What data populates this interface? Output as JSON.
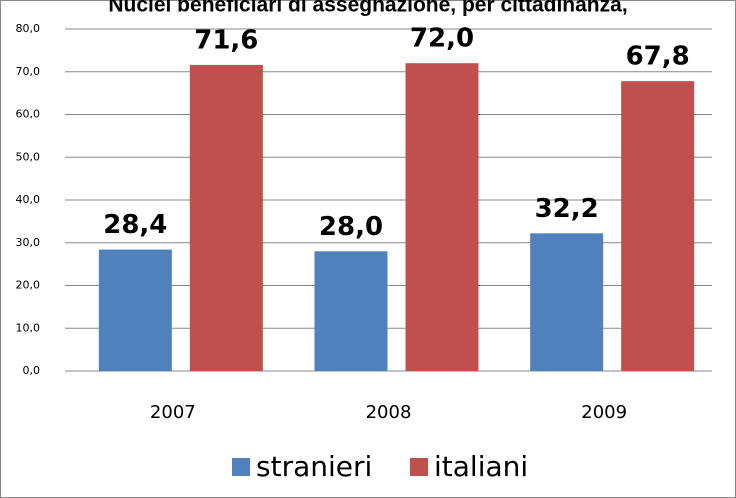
{
  "chart_data": {
    "type": "bar",
    "title": "Nuclei beneficiari di assegnazione, per cittadinanza,",
    "categories": [
      "2007",
      "2008",
      "2009"
    ],
    "series": [
      {
        "name": "stranieri",
        "color": "#4f81bd",
        "values": [
          28.4,
          28.0,
          32.2
        ],
        "value_labels": [
          "28,4",
          "28,0",
          "32,2"
        ]
      },
      {
        "name": "italiani",
        "color": "#c0504d",
        "values": [
          71.6,
          72.0,
          67.8
        ],
        "value_labels": [
          "71,6",
          "72,0",
          "67,8"
        ]
      }
    ],
    "ylim": [
      0,
      80
    ],
    "yticks": [
      {
        "value": 0,
        "label": "0,0"
      },
      {
        "value": 10,
        "label": "10,0"
      },
      {
        "value": 20,
        "label": "20,0"
      },
      {
        "value": 30,
        "label": "30,0"
      },
      {
        "value": 40,
        "label": "40,0"
      },
      {
        "value": 50,
        "label": "50,0"
      },
      {
        "value": 60,
        "label": "60,0"
      },
      {
        "value": 70,
        "label": "70,0"
      },
      {
        "value": 80,
        "label": "80,0"
      }
    ],
    "grid": true,
    "legend": "bottom"
  }
}
